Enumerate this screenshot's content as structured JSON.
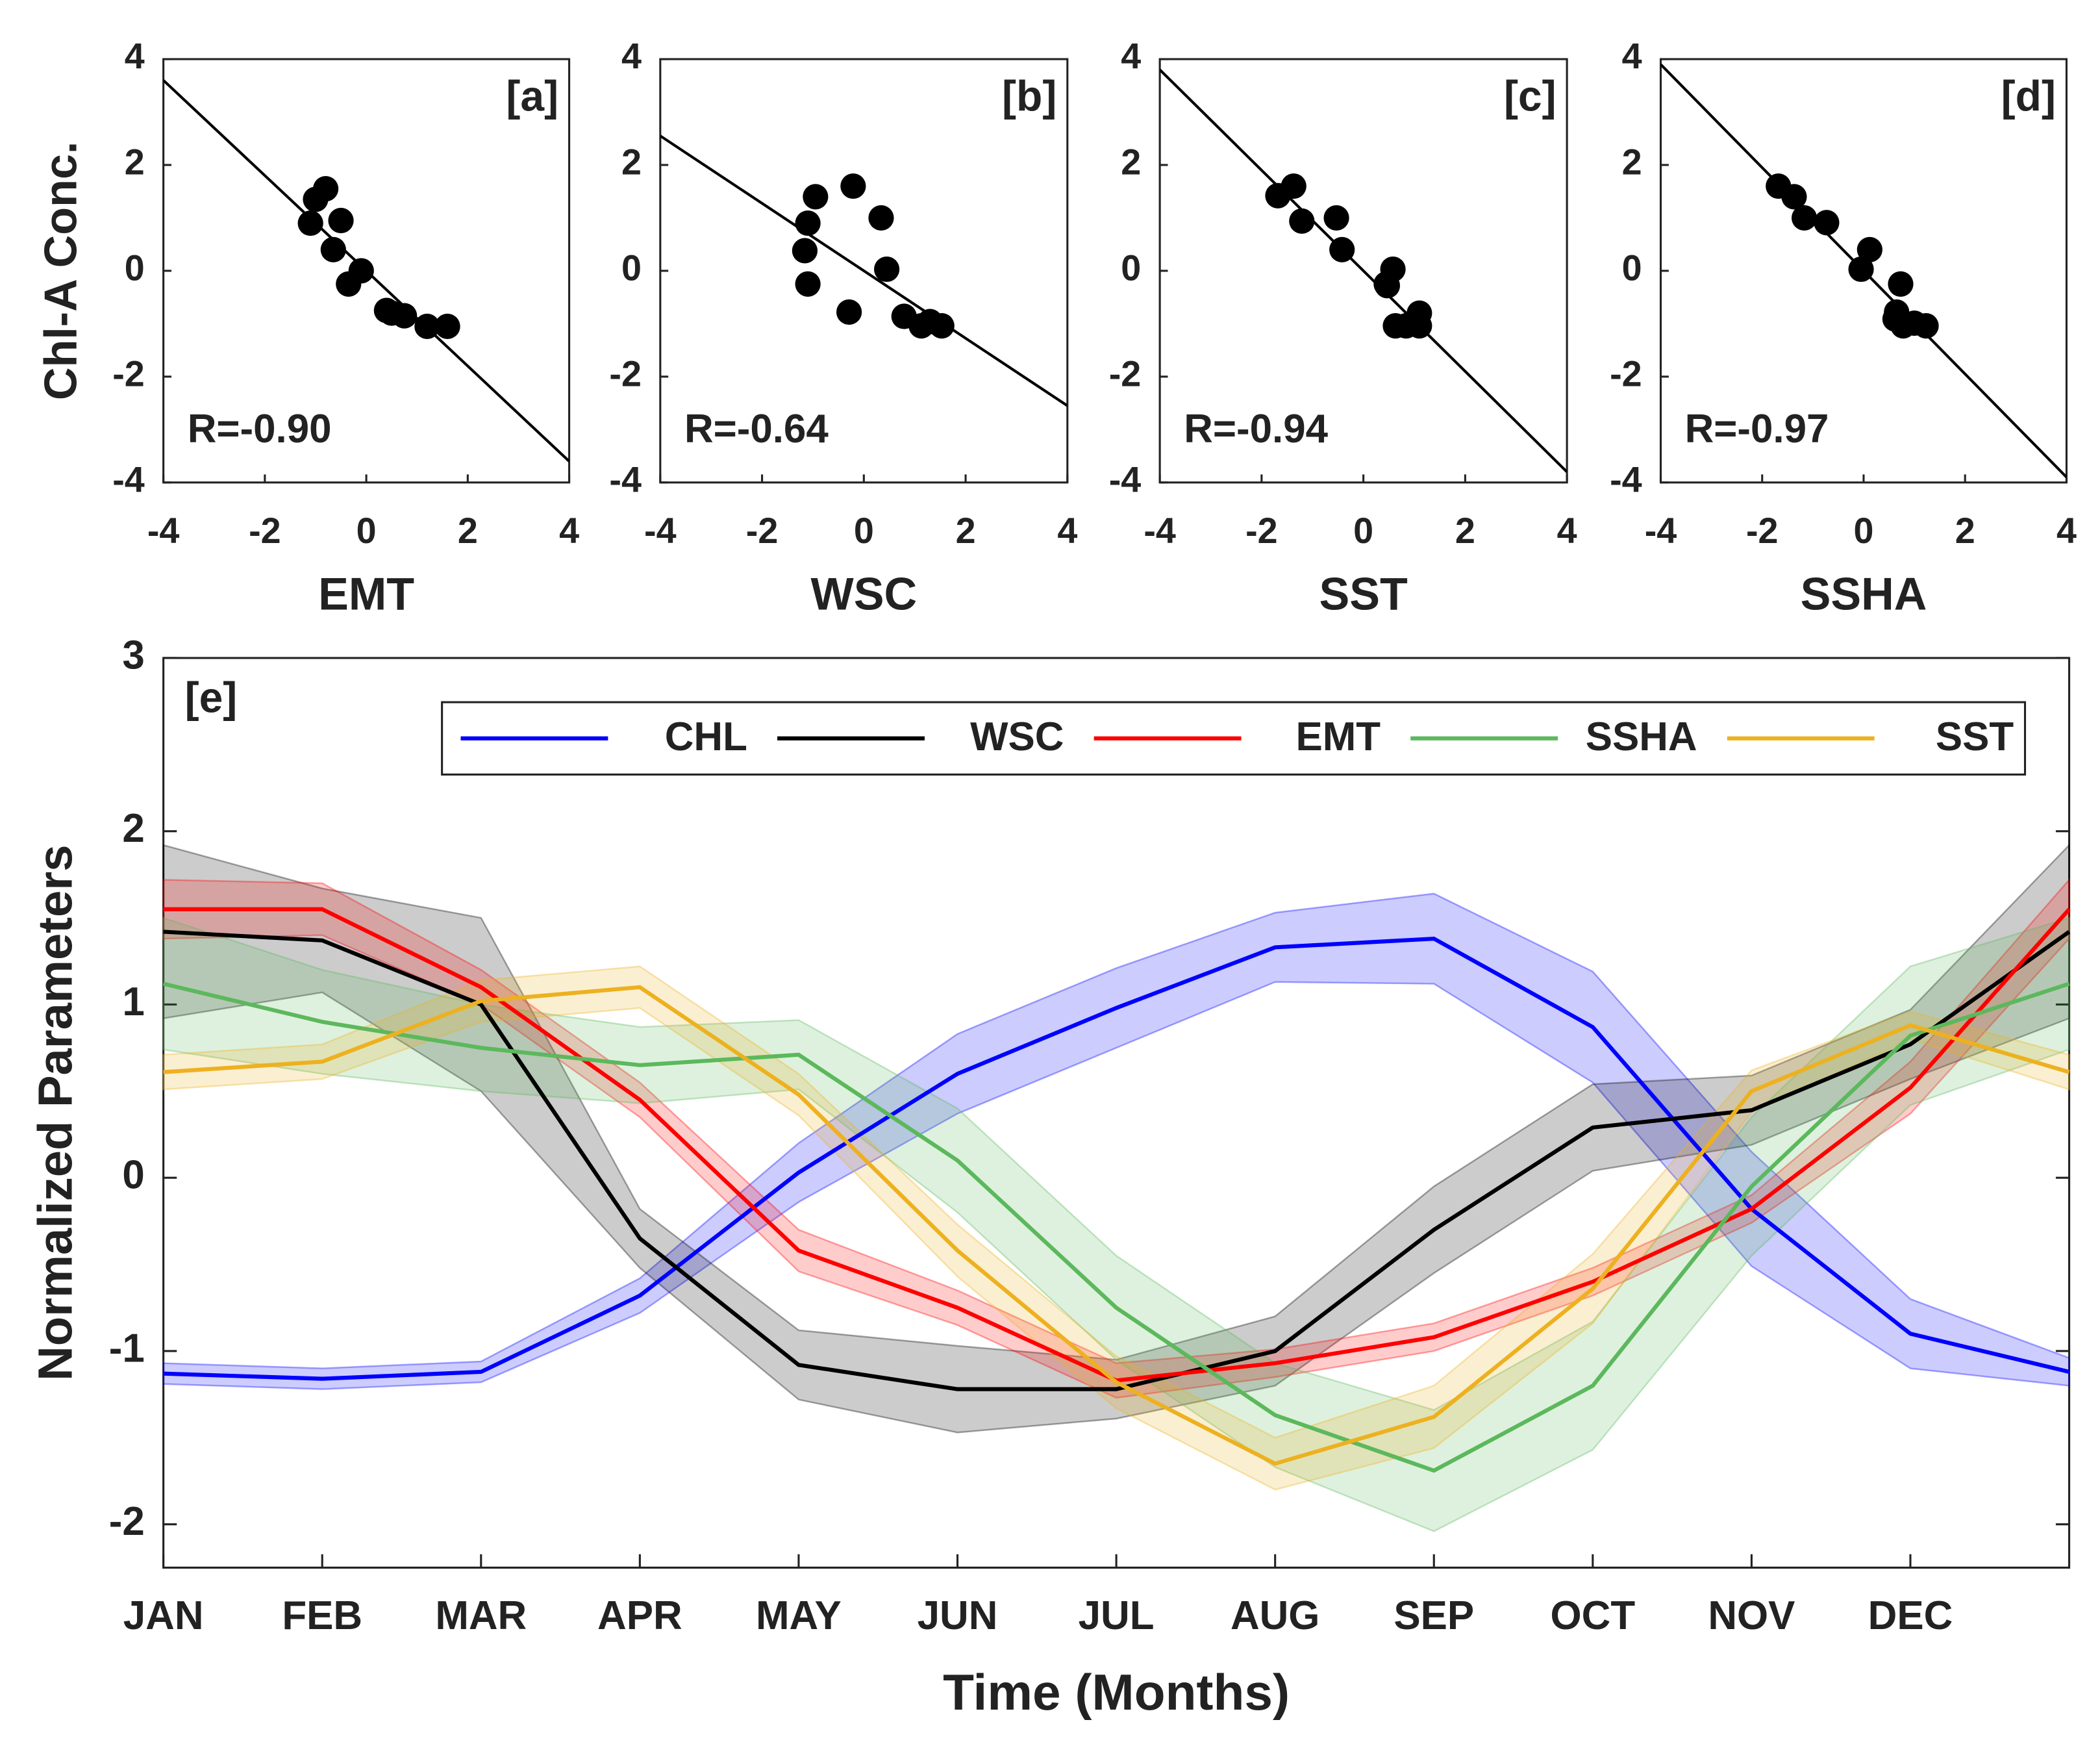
{
  "chart_data": [
    {
      "type": "scatter",
      "title": "[a]",
      "xlabel": "EMT",
      "ylabel": "Chl-A Conc.",
      "annotation": "R=-0.90",
      "annotation_color": "#0000ff",
      "color": "#000000",
      "x": [
        -1.1,
        -1.0,
        -0.8,
        -0.5,
        -0.65,
        -0.35,
        -0.1,
        0.5,
        0.75,
        1.2,
        1.6,
        0.4
      ],
      "y": [
        0.9,
        1.35,
        1.55,
        0.95,
        0.4,
        -0.25,
        0.0,
        -0.8,
        -0.85,
        -1.05,
        -1.05,
        -0.75
      ],
      "fit_line": {
        "x": [
          -4,
          4
        ],
        "y": [
          3.6,
          -3.6
        ]
      },
      "xlim": [
        -4,
        4
      ],
      "ylim": [
        -4,
        4
      ],
      "xticks": [
        -4,
        -2,
        0,
        2,
        4
      ],
      "yticks": [
        -4,
        -2,
        0,
        2,
        4
      ]
    },
    {
      "type": "scatter",
      "title": "[b]",
      "xlabel": "WSC",
      "annotation": "R=-0.64",
      "annotation_color": "#0000ff",
      "color": "#000000",
      "x": [
        -1.1,
        -1.16,
        -1.1,
        -0.95,
        -0.21,
        0.34,
        0.45,
        -0.29,
        0.79,
        1.13,
        1.53,
        1.3
      ],
      "y": [
        0.9,
        0.38,
        -0.25,
        1.4,
        1.6,
        1.0,
        0.03,
        -0.78,
        -0.86,
        -1.04,
        -1.04,
        -0.96
      ],
      "fit_line": {
        "x": [
          -4,
          4
        ],
        "y": [
          2.55,
          -2.55
        ]
      },
      "xlim": [
        -4,
        4
      ],
      "ylim": [
        -4,
        4
      ],
      "xticks": [
        -4,
        -2,
        0,
        2,
        4
      ],
      "yticks": [
        -4,
        -2,
        0,
        2,
        4
      ]
    },
    {
      "type": "scatter",
      "title": "[c]",
      "xlabel": "SST",
      "annotation": "R=-0.94",
      "annotation_color": "#0000ff",
      "color": "#000000",
      "x": [
        -1.68,
        -1.37,
        -1.21,
        -0.53,
        -0.42,
        0.45,
        0.58,
        0.63,
        0.84,
        1.1,
        1.1,
        0.47
      ],
      "y": [
        1.42,
        1.6,
        0.94,
        1.0,
        0.4,
        -0.25,
        0.03,
        -1.04,
        -1.04,
        -0.8,
        -1.04,
        -0.28
      ],
      "fit_line": {
        "x": [
          -4,
          4
        ],
        "y": [
          3.8,
          -3.8
        ]
      },
      "xlim": [
        -4,
        4
      ],
      "ylim": [
        -4,
        4
      ],
      "xticks": [
        -4,
        -2,
        0,
        2,
        4
      ],
      "yticks": [
        -4,
        -2,
        0,
        2,
        4
      ]
    },
    {
      "type": "scatter",
      "title": "[d]",
      "xlabel": "SSHA",
      "annotation": "R=-0.97",
      "annotation_color": "#0000ff",
      "color": "#000000",
      "x": [
        -1.68,
        -1.37,
        -1.17,
        -0.73,
        -0.05,
        0.12,
        0.73,
        0.65,
        0.78,
        1.0,
        1.23,
        0.62
      ],
      "y": [
        1.6,
        1.4,
        1.0,
        0.91,
        0.03,
        0.4,
        -0.25,
        -0.78,
        -1.04,
        -0.99,
        -1.04,
        -0.91
      ],
      "fit_line": {
        "x": [
          -4,
          4
        ],
        "y": [
          3.9,
          -3.9
        ]
      },
      "xlim": [
        -4,
        4
      ],
      "ylim": [
        -4,
        4
      ],
      "xticks": [
        -4,
        -2,
        0,
        2,
        4
      ],
      "yticks": [
        -4,
        -2,
        0,
        2,
        4
      ]
    },
    {
      "type": "line",
      "title": "[e]",
      "xlabel": "Time (Months)",
      "ylabel": "Normalized Parameters",
      "categories": [
        "JAN",
        "FEB",
        "MAR",
        "APR",
        "MAY",
        "JUN",
        "JUL",
        "AUG",
        "SEP",
        "OCT",
        "NOV",
        "DEC",
        null
      ],
      "series": [
        {
          "name": "CHL",
          "color": "#0000ff",
          "values": [
            -1.13,
            -1.16,
            -1.12,
            -0.68,
            0.03,
            0.6,
            0.98,
            1.33,
            1.38,
            0.87,
            -0.18,
            -0.9,
            -1.12
          ],
          "errors": [
            0.06,
            0.06,
            0.06,
            0.1,
            0.17,
            0.23,
            0.23,
            0.2,
            0.26,
            0.32,
            0.33,
            0.2,
            0.08
          ]
        },
        {
          "name": "WSC",
          "color": "#000000",
          "values": [
            1.42,
            1.37,
            1.0,
            -0.35,
            -1.08,
            -1.22,
            -1.22,
            -1.0,
            -0.3,
            0.29,
            0.39,
            0.77,
            1.42
          ],
          "errors": [
            0.5,
            0.3,
            0.5,
            0.17,
            0.2,
            0.25,
            0.17,
            0.2,
            0.25,
            0.25,
            0.2,
            0.2,
            0.5
          ]
        },
        {
          "name": "EMT",
          "color": "#ff0000",
          "values": [
            1.55,
            1.55,
            1.1,
            0.45,
            -0.42,
            -0.75,
            -1.17,
            -1.07,
            -0.92,
            -0.6,
            -0.18,
            0.52,
            1.55
          ],
          "errors": [
            0.17,
            0.15,
            0.1,
            0.1,
            0.12,
            0.1,
            0.1,
            0.08,
            0.08,
            0.08,
            0.08,
            0.15,
            0.17
          ]
        },
        {
          "name": "SSHA",
          "color": "#5cb85c",
          "values": [
            1.12,
            0.9,
            0.75,
            0.65,
            0.71,
            0.1,
            -0.75,
            -1.37,
            -1.69,
            -1.2,
            -0.05,
            0.82,
            1.12
          ],
          "errors": [
            0.38,
            0.3,
            0.25,
            0.22,
            0.2,
            0.3,
            0.3,
            0.3,
            0.35,
            0.37,
            0.4,
            0.4,
            0.38
          ]
        },
        {
          "name": "SST",
          "color": "#edb120",
          "values": [
            0.61,
            0.67,
            1.02,
            1.1,
            0.48,
            -0.42,
            -1.18,
            -1.65,
            -1.38,
            -0.64,
            0.5,
            0.88,
            0.61
          ],
          "errors": [
            0.1,
            0.1,
            0.12,
            0.12,
            0.12,
            0.15,
            0.15,
            0.15,
            0.18,
            0.2,
            0.12,
            0.08,
            0.1
          ]
        }
      ],
      "ylim": [
        -2.25,
        3
      ],
      "yticks": [
        -2,
        -1,
        0,
        1,
        2,
        3
      ],
      "legend": "upper right"
    }
  ]
}
